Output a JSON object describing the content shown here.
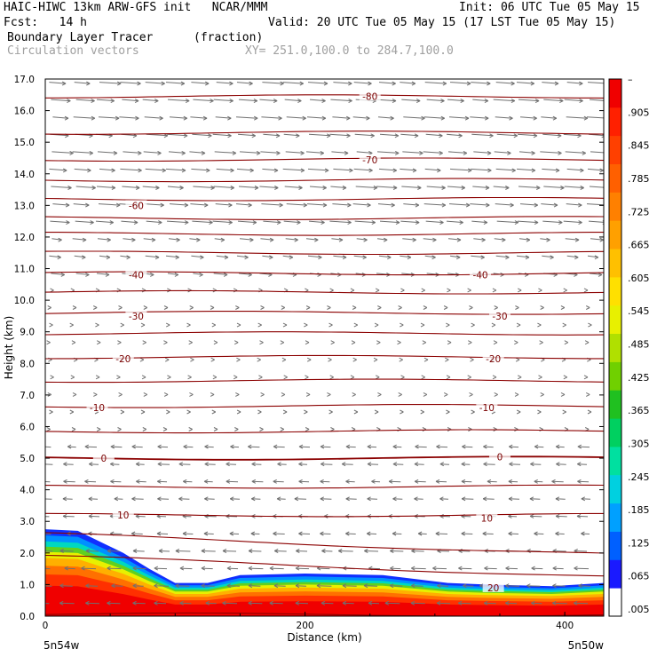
{
  "header": {
    "model": "HAIC-HIWC 13km ARW-GFS init   NCAR/MMM",
    "init": "Init: 06 UTC Tue 05 May 15",
    "fcst": "Fcst:   14 h",
    "valid": "Valid: 20 UTC Tue 05 May 15 (17 LST Tue 05 May 15)",
    "field1": "Boundary Layer Tracer",
    "field1_units": "(fraction)",
    "field2": "Circulation vectors",
    "xy": "XY= 251.0,100.0 to 284.7,100.0"
  },
  "colors": {
    "contour": "#8b0000",
    "vector": "#707070",
    "colorbar": [
      "#ffffff",
      "#1a1aff",
      "#0060ff",
      "#00a0ff",
      "#00d0e0",
      "#00e0a0",
      "#00d060",
      "#20c020",
      "#70d000",
      "#b0e000",
      "#e8f000",
      "#ffe000",
      "#ffc000",
      "#ffa000",
      "#ff8000",
      "#ff6000",
      "#ff4000",
      "#ff2000",
      "#f00000"
    ]
  },
  "chart_data": {
    "type": "cross-section",
    "xlabel": "Distance (km)",
    "ylabel": "Height (km)",
    "xlim": [
      0,
      430
    ],
    "ylim": [
      0,
      17
    ],
    "x_ticks": [
      "0",
      "200",
      "400"
    ],
    "y_ticks": [
      "0.0",
      "1.0",
      "2.0",
      "3.0",
      "4.0",
      "5.0",
      "6.0",
      "7.0",
      "8.0",
      "9.0",
      "10.0",
      "11.0",
      "12.0",
      "13.0",
      "14.0",
      "15.0",
      "16.0",
      "17.0"
    ],
    "left_endpoint_label": "5n54w",
    "right_endpoint_label": "5n50w",
    "colorbar_ticks": [
      ".005",
      ".065",
      ".125",
      ".185",
      ".245",
      ".305",
      ".365",
      ".425",
      ".485",
      ".545",
      ".605",
      ".665",
      ".725",
      ".785",
      ".845",
      ".905",
      "–"
    ],
    "contour_labels": [
      {
        "text": "-80",
        "x": 250,
        "y": 16.45
      },
      {
        "text": "-70",
        "x": 250,
        "y": 14.45
      },
      {
        "text": "-60",
        "x": 70,
        "y": 13.0
      },
      {
        "text": "-40",
        "x": 70,
        "y": 10.8
      },
      {
        "text": "-40",
        "x": 335,
        "y": 10.8
      },
      {
        "text": "-30",
        "x": 70,
        "y": 9.5
      },
      {
        "text": "-30",
        "x": 350,
        "y": 9.5
      },
      {
        "text": "-20",
        "x": 60,
        "y": 8.15
      },
      {
        "text": "-20",
        "x": 345,
        "y": 8.15
      },
      {
        "text": "-10",
        "x": 40,
        "y": 6.6
      },
      {
        "text": "-10",
        "x": 340,
        "y": 6.6
      },
      {
        "text": "0",
        "x": 45,
        "y": 5.0
      },
      {
        "text": "0",
        "x": 350,
        "y": 5.05
      },
      {
        "text": "10",
        "x": 60,
        "y": 3.2
      },
      {
        "text": "10",
        "x": 340,
        "y": 3.1
      },
      {
        "text": "20",
        "x": 345,
        "y": 0.9
      }
    ],
    "tracer_top_km": [
      {
        "x": 0,
        "y": 2.75
      },
      {
        "x": 25,
        "y": 2.7
      },
      {
        "x": 45,
        "y": 2.3
      },
      {
        "x": 60,
        "y": 2.0
      },
      {
        "x": 80,
        "y": 1.5
      },
      {
        "x": 100,
        "y": 1.05
      },
      {
        "x": 125,
        "y": 1.05
      },
      {
        "x": 150,
        "y": 1.3
      },
      {
        "x": 200,
        "y": 1.35
      },
      {
        "x": 260,
        "y": 1.3
      },
      {
        "x": 310,
        "y": 1.05
      },
      {
        "x": 340,
        "y": 1.0
      },
      {
        "x": 390,
        "y": 0.95
      },
      {
        "x": 430,
        "y": 1.05
      }
    ]
  }
}
